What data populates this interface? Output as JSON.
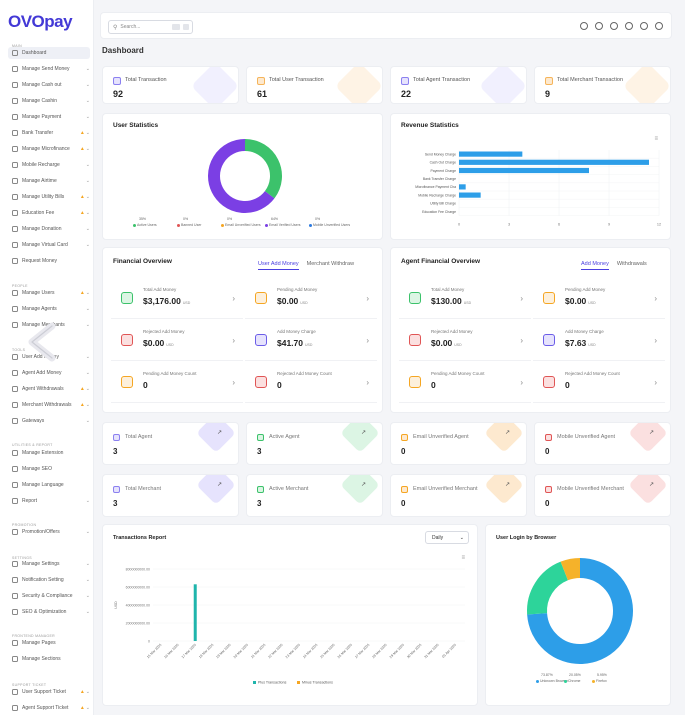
{
  "brand": {
    "logo": "OVOpay"
  },
  "sidebar": {
    "sections": [
      {
        "label": "MAIN",
        "top": 44
      },
      {
        "label": "PEOPLE",
        "top": 284
      },
      {
        "label": "TOOLS",
        "top": 348
      },
      {
        "label": "UTILITIES & REPORT",
        "top": 443
      },
      {
        "label": "PROMOTION",
        "top": 523
      },
      {
        "label": "SETTINGS",
        "top": 556
      },
      {
        "label": "FRONTEND MANAGER",
        "top": 634
      },
      {
        "label": "SUPPORT TICKET",
        "top": 683
      }
    ],
    "items": [
      {
        "label": "Dashboard",
        "top": 53,
        "active": true,
        "chev": false,
        "warn": false
      },
      {
        "label": "Manage Send Money",
        "top": 69,
        "chev": true
      },
      {
        "label": "Manage Cash out",
        "top": 85,
        "chev": true
      },
      {
        "label": "Manage Cashin",
        "top": 101,
        "chev": true
      },
      {
        "label": "Manage Payment",
        "top": 117,
        "chev": true
      },
      {
        "label": "Bank Transfer",
        "top": 133,
        "chev": true,
        "warn": true
      },
      {
        "label": "Manage Microfinance",
        "top": 149,
        "chev": true,
        "warn": true
      },
      {
        "label": "Mobile Recharge",
        "top": 165,
        "chev": true
      },
      {
        "label": "Manage Airtime",
        "top": 181,
        "chev": true
      },
      {
        "label": "Manage Utility Bills",
        "top": 197,
        "chev": true,
        "warn": true
      },
      {
        "label": "Education Fee",
        "top": 213,
        "chev": true,
        "warn": true
      },
      {
        "label": "Manage Donation",
        "top": 229,
        "chev": true
      },
      {
        "label": "Manage Virtual Card",
        "top": 245,
        "chev": true
      },
      {
        "label": "Request Money",
        "top": 261,
        "chev": false
      },
      {
        "label": "Manage Users",
        "top": 293,
        "chev": true,
        "warn": true
      },
      {
        "label": "Manage Agents",
        "top": 309,
        "chev": true
      },
      {
        "label": "Manage Merchants",
        "top": 325,
        "chev": true
      },
      {
        "label": "User Add Money",
        "top": 357,
        "chev": true
      },
      {
        "label": "Agent Add Money",
        "top": 373,
        "chev": true
      },
      {
        "label": "Agent Withdrawals",
        "top": 389,
        "chev": true,
        "warn": true
      },
      {
        "label": "Merchant Withdrawals",
        "top": 405,
        "chev": true,
        "warn": true
      },
      {
        "label": "Gateways",
        "top": 421,
        "chev": true
      },
      {
        "label": "Manage Extension",
        "top": 453,
        "chev": false
      },
      {
        "label": "Manage SEO",
        "top": 469,
        "chev": false
      },
      {
        "label": "Manage Language",
        "top": 485,
        "chev": false
      },
      {
        "label": "Report",
        "top": 501,
        "chev": true
      },
      {
        "label": "Promotion/Offers",
        "top": 532,
        "chev": true
      },
      {
        "label": "Manage Settings",
        "top": 564,
        "chev": true
      },
      {
        "label": "Notification Setting",
        "top": 580,
        "chev": true
      },
      {
        "label": "Security & Compliance",
        "top": 596,
        "chev": true
      },
      {
        "label": "SEO & Optimization",
        "top": 612,
        "chev": true
      },
      {
        "label": "Manage Pages",
        "top": 643,
        "chev": false
      },
      {
        "label": "Manage Sections",
        "top": 659,
        "chev": false
      },
      {
        "label": "User Support Ticket",
        "top": 692,
        "chev": true,
        "warn": true
      },
      {
        "label": "Agent Support Ticket",
        "top": 708,
        "chev": true,
        "warn": true
      }
    ]
  },
  "topbar": {
    "search_placeholder": "Search..."
  },
  "page_title": "Dashboard",
  "stats": [
    {
      "title": "Total Transaction",
      "value": "92",
      "color": "#8b80f0",
      "bg": "#e6e3fd"
    },
    {
      "title": "Total User Transaction",
      "value": "61",
      "color": "#f5b45a",
      "bg": "#fde9cf"
    },
    {
      "title": "Total Agent Transaction",
      "value": "22",
      "color": "#8b80f0",
      "bg": "#e6e3fd"
    },
    {
      "title": "Total Merchant Transaction",
      "value": "9",
      "color": "#f5b45a",
      "bg": "#fde9cf"
    }
  ],
  "user_statistics": {
    "title": "User Statistics",
    "legend": [
      {
        "pct": "35%",
        "label": "Active Users",
        "color": "#3cc26b"
      },
      {
        "pct": "0%",
        "label": "Banned User",
        "color": "#e05555"
      },
      {
        "pct": "0%",
        "label": "Email Unverified Users",
        "color": "#f5a623"
      },
      {
        "pct": "64%",
        "label": "Email Verified Users",
        "color": "#7b3fe4"
      },
      {
        "pct": "0%",
        "label": "Mobile Unverified Users",
        "color": "#2d7be0"
      }
    ]
  },
  "chart_data": [
    {
      "type": "pie",
      "title": "User Statistics",
      "categories": [
        "Active Users",
        "Banned User",
        "Email Unverified Users",
        "Email Verified Users",
        "Mobile Unverified Users"
      ],
      "values": [
        35,
        0,
        0,
        64,
        0
      ]
    },
    {
      "type": "bar",
      "orientation": "horizontal",
      "title": "Revenue Statistics",
      "categories": [
        "Send Money Charge",
        "Cash Out Charge",
        "Payment Charge",
        "Bank Transfer Charge",
        "Microfinance Payment Cha",
        "Mobile Recharge Charge",
        "Utility Bill Charge",
        "Education Fee Charge"
      ],
      "values": [
        3.8,
        11.4,
        7.8,
        0,
        0.4,
        1.3,
        0,
        0
      ],
      "xticks": [
        "0",
        "3",
        "6",
        "9",
        "12"
      ],
      "xlim": [
        0,
        12
      ]
    },
    {
      "type": "bar",
      "title": "Transactions Report",
      "categories": [
        "15 Mar 2025",
        "16 Mar 2025",
        "17 Mar 2025",
        "18 Mar 2025",
        "19 Mar 2025",
        "20 Mar 2025",
        "21 Mar 2025",
        "22 Mar 2025",
        "23 Mar 2025",
        "24 Mar 2025",
        "25 Mar 2025",
        "26 Mar 2025",
        "27 Mar 2025",
        "28 Mar 2025",
        "29 Mar 2025",
        "30 Mar 2025",
        "31 Mar 2025",
        "01 Apr 2025"
      ],
      "series": [
        {
          "name": "Plus Transactions",
          "color": "#1fb5ac",
          "values": [
            0,
            0,
            6300000000,
            0,
            0,
            0,
            0,
            0,
            0,
            0,
            0,
            0,
            0,
            0,
            0,
            0,
            0,
            0
          ]
        },
        {
          "name": "Minus Transactions",
          "color": "#f5a623",
          "values": [
            0,
            0,
            0,
            0,
            0,
            0,
            0,
            0,
            0,
            0,
            0,
            0,
            0,
            0,
            0,
            0,
            0,
            0
          ]
        }
      ],
      "yticks": [
        "0",
        "2000000000.00",
        "4000000000.00",
        "6000000000.00",
        "8000000000.00"
      ],
      "ylim": [
        0,
        8000000000
      ]
    },
    {
      "type": "pie",
      "title": "User Login by Browser",
      "categories": [
        "Unknown Browser",
        "Chrome",
        "Firefox"
      ],
      "values": [
        73.87,
        20.05,
        5.95
      ]
    }
  ],
  "revenue": {
    "title": "Revenue Statistics",
    "bar_color": "#2d9ee8"
  },
  "financial": {
    "title": "Financial Overview",
    "tab_active": "User Add Money",
    "tab_other": "Merchant Withdraw",
    "items": [
      {
        "label": "Total Add Money",
        "value": "$3,176.00",
        "unit": "USD",
        "color": "#3cc26b",
        "bg": "#dcf5e4"
      },
      {
        "label": "Pending Add Money",
        "value": "$0.00",
        "unit": "USD",
        "color": "#f5a623",
        "bg": "#fdf0dc"
      },
      {
        "label": "Rejected Add Money",
        "value": "$0.00",
        "unit": "USD",
        "color": "#e05555",
        "bg": "#fbe0e0"
      },
      {
        "label": "Add Money Charge",
        "value": "$41.70",
        "unit": "USD",
        "color": "#6b5de8",
        "bg": "#e6e3fd"
      },
      {
        "label": "Pending Add Money Count",
        "value": "0",
        "unit": "",
        "color": "#f5a623",
        "bg": "#fdf0dc"
      },
      {
        "label": "Rejected Add Money Count",
        "value": "0",
        "unit": "",
        "color": "#e05555",
        "bg": "#fbe0e0"
      }
    ]
  },
  "agent_financial": {
    "title": "Agent Financial Overview",
    "tab_active": "Add Money",
    "tab_other": "Withdrawals",
    "items": [
      {
        "label": "Total Add Money",
        "value": "$130.00",
        "unit": "USD",
        "color": "#3cc26b",
        "bg": "#dcf5e4"
      },
      {
        "label": "Pending Add Money",
        "value": "$0.00",
        "unit": "USD",
        "color": "#f5a623",
        "bg": "#fdf0dc"
      },
      {
        "label": "Rejected Add Money",
        "value": "$0.00",
        "unit": "USD",
        "color": "#e05555",
        "bg": "#fbe0e0"
      },
      {
        "label": "Add Money Charge",
        "value": "$7.63",
        "unit": "USD",
        "color": "#6b5de8",
        "bg": "#e6e3fd"
      },
      {
        "label": "Pending Add Money Count",
        "value": "0",
        "unit": "",
        "color": "#f5a623",
        "bg": "#fdf0dc"
      },
      {
        "label": "Rejected Add Money Count",
        "value": "0",
        "unit": "",
        "color": "#e05555",
        "bg": "#fbe0e0"
      }
    ]
  },
  "mini_stats": [
    {
      "title": "Total Agent",
      "value": "3",
      "color": "#8b80f0",
      "bg": "#e6e3fd"
    },
    {
      "title": "Active Agent",
      "value": "3",
      "color": "#3cc26b",
      "bg": "#dcf5e4"
    },
    {
      "title": "Email Unverified Agent",
      "value": "0",
      "color": "#f5a623",
      "bg": "#fde9cf"
    },
    {
      "title": "Mobile Unverified Agent",
      "value": "0",
      "color": "#e05555",
      "bg": "#fbe0e0"
    },
    {
      "title": "Total Merchant",
      "value": "3",
      "color": "#8b80f0",
      "bg": "#e6e3fd"
    },
    {
      "title": "Active Merchant",
      "value": "3",
      "color": "#3cc26b",
      "bg": "#dcf5e4"
    },
    {
      "title": "Email Unverified Merchant",
      "value": "0",
      "color": "#f5a623",
      "bg": "#fde9cf"
    },
    {
      "title": "Mobile Unverified Merchant",
      "value": "0",
      "color": "#e05555",
      "bg": "#fbe0e0"
    }
  ],
  "transactions": {
    "title": "Transactions Report",
    "period": "Daily",
    "y_label": "USD"
  },
  "browser": {
    "title": "User Login by Browser",
    "legend": [
      {
        "pct": "73.87%",
        "label": "Unknown Browser",
        "color": "#2d9ee8"
      },
      {
        "pct": "20.05%",
        "label": "Chrome",
        "color": "#2dd49a"
      },
      {
        "pct": "5.95%",
        "label": "Firefox",
        "color": "#f5b22a"
      }
    ]
  }
}
